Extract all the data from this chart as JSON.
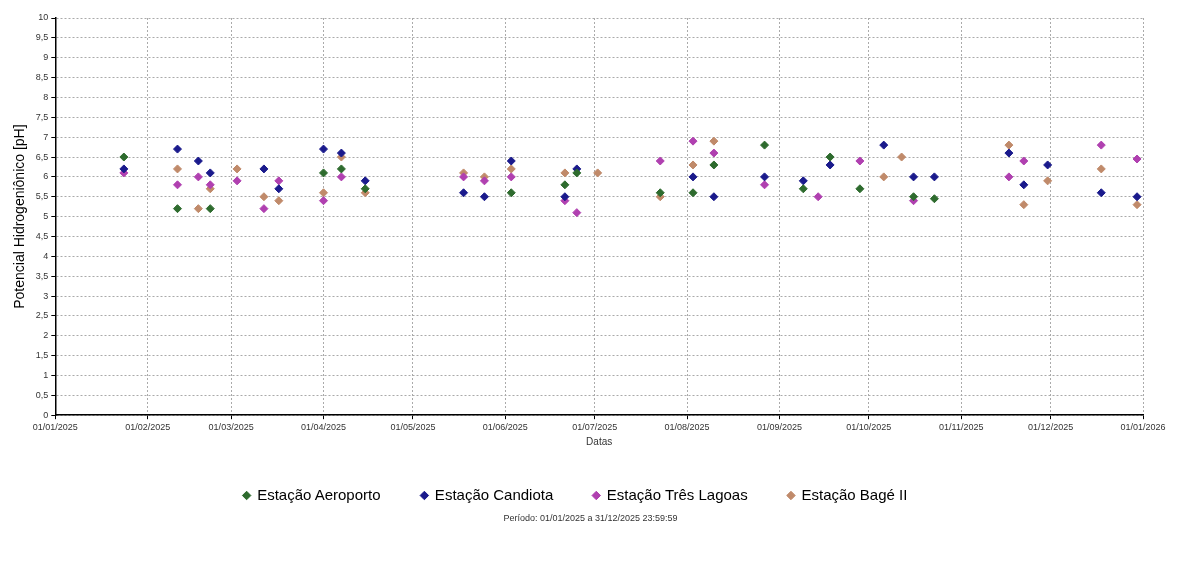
{
  "chart_data": {
    "type": "scatter",
    "xlabel": "Datas",
    "ylabel": "Potencial Hidrogeniônico [pH]",
    "xlim": [
      "2025-01-01",
      "2026-01-01"
    ],
    "xticks": [
      {
        "value": "2025-01-01",
        "label": "01/01/2025"
      },
      {
        "value": "2025-02-01",
        "label": "01/02/2025"
      },
      {
        "value": "2025-03-01",
        "label": "01/03/2025"
      },
      {
        "value": "2025-04-01",
        "label": "01/04/2025"
      },
      {
        "value": "2025-05-01",
        "label": "01/05/2025"
      },
      {
        "value": "2025-06-01",
        "label": "01/06/2025"
      },
      {
        "value": "2025-07-01",
        "label": "01/07/2025"
      },
      {
        "value": "2025-08-01",
        "label": "01/08/2025"
      },
      {
        "value": "2025-09-01",
        "label": "01/09/2025"
      },
      {
        "value": "2025-10-01",
        "label": "01/10/2025"
      },
      {
        "value": "2025-11-01",
        "label": "01/11/2025"
      },
      {
        "value": "2025-12-01",
        "label": "01/12/2025"
      },
      {
        "value": "2026-01-01",
        "label": "01/01/2026"
      }
    ],
    "ylim": [
      0,
      10
    ],
    "yticks": [
      0,
      {
        "value": 0.5,
        "label": "0,5"
      },
      1,
      {
        "value": 1.5,
        "label": "1,5"
      },
      2,
      {
        "value": 2.5,
        "label": "2,5"
      },
      3,
      {
        "value": 3.5,
        "label": "3,5"
      },
      4,
      {
        "value": 4.5,
        "label": "4,5"
      },
      5,
      {
        "value": 5.5,
        "label": "5,5"
      },
      6,
      {
        "value": 6.5,
        "label": "6,5"
      },
      7,
      {
        "value": 7.5,
        "label": "7,5"
      },
      8,
      {
        "value": 8.5,
        "label": "8,5"
      },
      9,
      {
        "value": 9.5,
        "label": "9,5"
      },
      10
    ],
    "grid": true,
    "legend": "bottom",
    "marker": "diamond",
    "annotations": [
      "Período: 01/01/2025 a 31/12/2025 23:59:59"
    ],
    "series": [
      {
        "name": "Estação Aeroporto",
        "color": "#2e6b2e",
        "x": [
          "2025-01-24",
          "2025-02-11",
          "2025-02-22",
          "2025-04-01",
          "2025-04-07",
          "2025-04-15",
          "2025-06-03",
          "2025-06-21",
          "2025-06-25",
          "2025-07-23",
          "2025-08-03",
          "2025-08-10",
          "2025-08-27",
          "2025-09-09",
          "2025-09-18",
          "2025-09-28",
          "2025-10-16",
          "2025-10-23"
        ],
        "values": [
          6.5,
          5.2,
          5.2,
          6.1,
          6.2,
          5.7,
          5.6,
          5.8,
          6.1,
          5.6,
          5.6,
          6.3,
          6.8,
          5.7,
          6.5,
          5.7,
          5.5,
          5.45
        ]
      },
      {
        "name": "Estação Candiota",
        "color": "#1a1a8c",
        "x": [
          "2025-01-24",
          "2025-02-11",
          "2025-02-18",
          "2025-02-22",
          "2025-03-12",
          "2025-03-17",
          "2025-04-01",
          "2025-04-07",
          "2025-04-15",
          "2025-05-18",
          "2025-05-25",
          "2025-06-03",
          "2025-06-21",
          "2025-06-25",
          "2025-08-03",
          "2025-08-10",
          "2025-08-27",
          "2025-09-09",
          "2025-09-18",
          "2025-10-06",
          "2025-10-16",
          "2025-10-23",
          "2025-11-17",
          "2025-11-22",
          "2025-11-30",
          "2025-12-18",
          "2025-12-30"
        ],
        "values": [
          6.2,
          6.7,
          6.4,
          6.1,
          6.2,
          5.7,
          6.7,
          6.6,
          5.9,
          5.6,
          5.5,
          6.4,
          5.5,
          6.2,
          6.0,
          5.5,
          6.0,
          5.9,
          6.3,
          6.8,
          6.0,
          6.0,
          6.6,
          5.8,
          6.3,
          5.6,
          5.5
        ]
      },
      {
        "name": "Estação Três Lagoas",
        "color": "#b040b0",
        "x": [
          "2025-01-24",
          "2025-02-11",
          "2025-02-18",
          "2025-02-22",
          "2025-03-03",
          "2025-03-12",
          "2025-03-17",
          "2025-04-01",
          "2025-04-07",
          "2025-05-18",
          "2025-05-25",
          "2025-06-03",
          "2025-06-21",
          "2025-06-25",
          "2025-07-23",
          "2025-08-03",
          "2025-08-10",
          "2025-08-27",
          "2025-09-14",
          "2025-09-28",
          "2025-10-16",
          "2025-11-17",
          "2025-11-22",
          "2025-12-18",
          "2025-12-30"
        ],
        "values": [
          6.1,
          5.8,
          6.0,
          5.8,
          5.9,
          5.2,
          5.9,
          5.4,
          6.0,
          6.0,
          5.9,
          6.0,
          5.4,
          5.1,
          6.4,
          6.9,
          6.6,
          5.8,
          5.5,
          6.4,
          5.4,
          6.0,
          6.4,
          6.8,
          6.45
        ]
      },
      {
        "name": "Estação Bagé II",
        "color": "#c08a6a",
        "x": [
          "2025-02-11",
          "2025-02-18",
          "2025-02-22",
          "2025-03-03",
          "2025-03-12",
          "2025-03-17",
          "2025-04-01",
          "2025-04-07",
          "2025-04-15",
          "2025-05-18",
          "2025-05-25",
          "2025-06-03",
          "2025-06-21",
          "2025-07-02",
          "2025-07-23",
          "2025-08-03",
          "2025-08-10",
          "2025-10-06",
          "2025-10-12",
          "2025-11-17",
          "2025-11-22",
          "2025-11-30",
          "2025-12-18",
          "2025-12-30"
        ],
        "values": [
          6.2,
          5.2,
          5.7,
          6.2,
          5.5,
          5.4,
          5.6,
          6.5,
          5.6,
          6.1,
          6.0,
          6.2,
          6.1,
          6.1,
          5.5,
          6.3,
          6.9,
          6.0,
          6.5,
          6.8,
          5.3,
          5.9,
          6.2,
          5.3
        ]
      }
    ]
  }
}
